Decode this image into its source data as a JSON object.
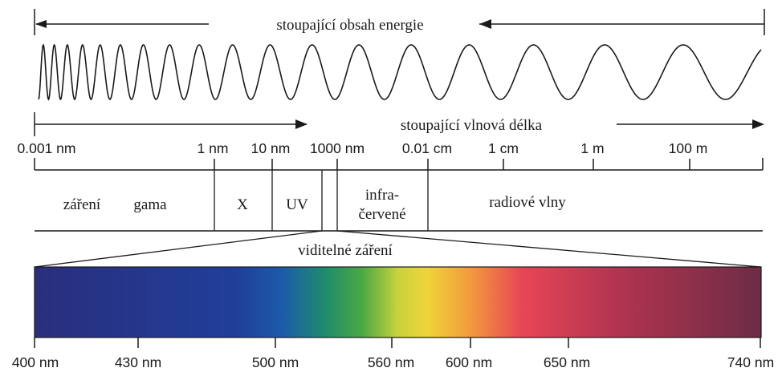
{
  "arrows": {
    "energy_label": "stoupající obsah energie",
    "wavelength_label": "stoupající vlnová délka"
  },
  "scale": {
    "ticks": [
      "0.001 nm",
      "1 nm",
      "10 nm",
      "1000 nm",
      "0.01 cm",
      "1 cm",
      "1 m",
      "100 m"
    ]
  },
  "regions": {
    "gamma_word1": "záření",
    "gamma_word2": "gama",
    "xray": "X",
    "uv": "UV",
    "ir_line1": "infra-",
    "ir_line2": "červené",
    "radio": "radiové vlny"
  },
  "visible": {
    "label": "viditelné záření",
    "ticks": [
      "400 nm",
      "430 nm",
      "500 nm",
      "560 nm",
      "600 nm",
      "650 nm",
      "740 nm"
    ]
  },
  "colors": {
    "line": "#1a1a1a",
    "spectrum_stops": [
      "#272d7a",
      "#1f3f9b",
      "#1d6bb1",
      "#1f9a6a",
      "#5bb247",
      "#d8d43d",
      "#f2a33a",
      "#e74855",
      "#b0334f",
      "#6e2c45"
    ]
  }
}
